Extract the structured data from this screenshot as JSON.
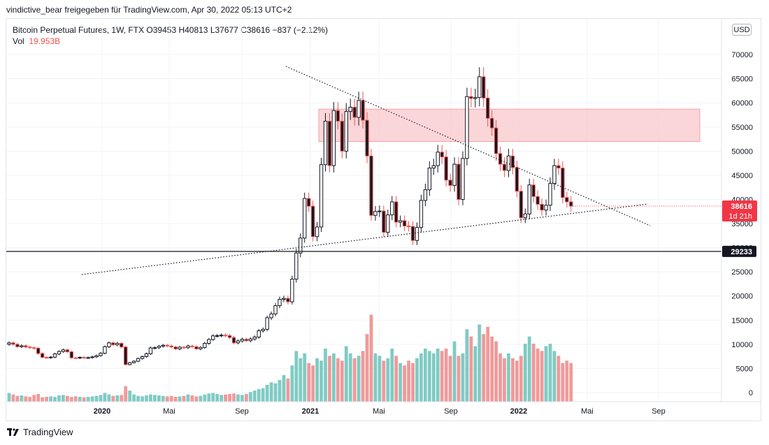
{
  "header": {
    "text": "vindictive_bear freigegeben für TradingView.com, Apr 30, 2022 05:13 UTC+2"
  },
  "legend": {
    "line1": "Bitcoin Perpetual Futures, 1W, FTX  O39453  H40813  L37677  C38616  −837 (−2.12%)",
    "vol_label": "Vol",
    "vol_value": "19.953B"
  },
  "currency_button": "USD",
  "price_badge": {
    "price": "38616",
    "countdown": "1d 21h",
    "color": "#f23645"
  },
  "level_badge": {
    "price": "29233"
  },
  "footer": {
    "brand": "TradingView"
  },
  "colors": {
    "up": "#ffffff",
    "down": "#ef5350",
    "up_vol": "#80cbc4",
    "down_vol": "#ef9a9a",
    "zone": "#f8c8cc"
  },
  "chart_data": {
    "type": "candlestick",
    "symbol": "Bitcoin Perpetual Futures",
    "interval": "1W",
    "ylim": [
      0,
      75000
    ],
    "y_ticks": [
      0,
      5000,
      10000,
      15000,
      20000,
      25000,
      30000,
      35000,
      40000,
      45000,
      50000,
      55000,
      60000,
      65000,
      70000
    ],
    "x_ticks": [
      {
        "label": "2020",
        "bold": true
      },
      {
        "label": "Mai",
        "bold": false
      },
      {
        "label": "Sep",
        "bold": false
      },
      {
        "label": "2021",
        "bold": true
      },
      {
        "label": "Mai",
        "bold": false
      },
      {
        "label": "Sep",
        "bold": false
      },
      {
        "label": "2022",
        "bold": true
      },
      {
        "label": "Mai",
        "bold": false
      },
      {
        "label": "Sep",
        "bold": false
      }
    ],
    "horizontal_level": 29233,
    "resistance_zone": [
      52000,
      58700
    ],
    "closes": [
      10300,
      10000,
      9500,
      9700,
      9450,
      9300,
      9200,
      8100,
      7300,
      7250,
      7350,
      8000,
      8500,
      8850,
      8450,
      7200,
      7150,
      7300,
      7200,
      7250,
      7400,
      7650,
      8150,
      9500,
      10300,
      9900,
      10200,
      9450,
      5800,
      6200,
      6500,
      7050,
      7450,
      8050,
      9250,
      9300,
      9600,
      9800,
      9650,
      9450,
      9050,
      9400,
      9300,
      9650,
      9500,
      9050,
      9350,
      10200,
      11000,
      11750,
      11800,
      11900,
      11800,
      11400,
      10300,
      10700,
      11050,
      10750,
      11100,
      11500,
      12800,
      13100,
      15500,
      16300,
      18000,
      19300,
      19500,
      18800,
      23500,
      28900,
      32000,
      40200,
      38600,
      32300,
      34300,
      47200,
      56200,
      47000,
      58400,
      56200,
      50000,
      58200,
      59100,
      57000,
      60500,
      56400,
      49000,
      36700,
      37500,
      37600,
      33200,
      36800,
      39500,
      35300,
      35600,
      34500,
      34400,
      31500,
      34200,
      39800,
      42000,
      46500,
      47000,
      49800,
      48800,
      44000,
      42900,
      47300,
      40000,
      48500,
      61300,
      60900,
      61100,
      65400,
      61000,
      56800,
      54800,
      49500,
      47300,
      46000,
      49000,
      46600,
      41700,
      36200,
      37000,
      43000,
      40600,
      39000,
      37800,
      38800,
      43300,
      47000,
      46500,
      40400,
      39500,
      38616
    ],
    "volumes": [
      1.8,
      1.5,
      1.2,
      1.3,
      1.1,
      1.0,
      1.4,
      1.6,
      0.9,
      1.0,
      1.1,
      1.0,
      1.3,
      1.4,
      1.2,
      1.0,
      1.1,
      1.0,
      0.9,
      1.0,
      1.1,
      1.2,
      1.4,
      1.8,
      1.5,
      1.2,
      1.3,
      1.4,
      3.2,
      2.3,
      1.5,
      1.2,
      1.1,
      1.3,
      1.5,
      1.4,
      1.3,
      1.2,
      1.1,
      1.2,
      1.0,
      1.1,
      1.2,
      1.5,
      1.3,
      1.1,
      1.2,
      1.5,
      1.7,
      1.8,
      1.6,
      1.4,
      1.5,
      1.6,
      1.7,
      1.5,
      1.4,
      1.6,
      2.0,
      2.3,
      2.6,
      2.8,
      3.5,
      4.0,
      3.8,
      4.5,
      5.5,
      4.8,
      7.5,
      10.5,
      9.0,
      10.0,
      8.0,
      7.5,
      9.0,
      8.5,
      11.0,
      9.5,
      10.0,
      9.0,
      8.5,
      11.5,
      10.0,
      9.0,
      9.5,
      10.5,
      14.0,
      18.0,
      10.0,
      9.5,
      8.5,
      9.0,
      11.0,
      9.5,
      8.0,
      7.5,
      8.5,
      8.0,
      9.0,
      10.0,
      11.0,
      10.5,
      10.0,
      11.0,
      10.5,
      11.0,
      9.5,
      12.5,
      9.5,
      10.0,
      15.0,
      13.5,
      11.5,
      16.0,
      14.0,
      15.5,
      13.5,
      12.5,
      10.0,
      9.0,
      10.0,
      9.0,
      8.5,
      9.5,
      12.0,
      13.5,
      12.0,
      11.0,
      10.5,
      11.5,
      12.0,
      10.5,
      9.5,
      8.0,
      8.5,
      8.0
    ]
  }
}
